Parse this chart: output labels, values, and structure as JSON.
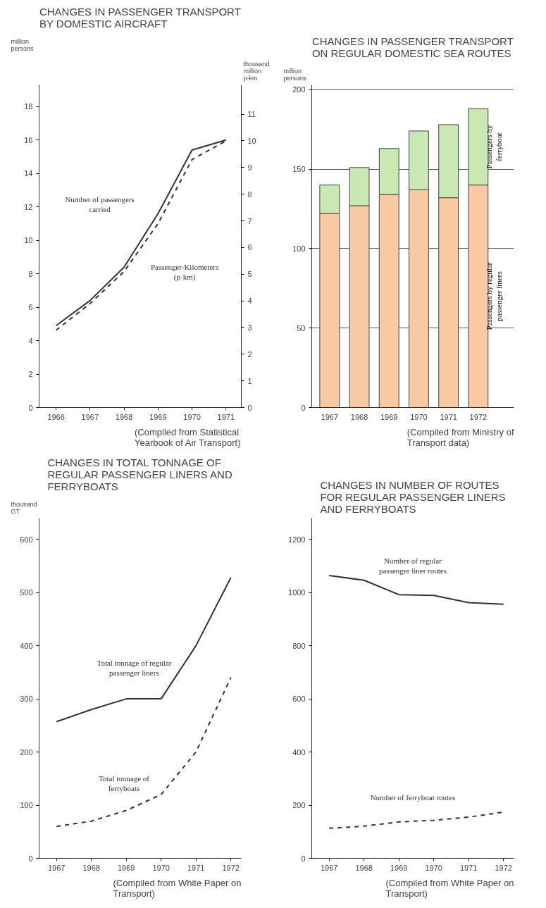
{
  "chart_data": [
    {
      "type": "line",
      "title": "CHANGES IN PASSENGER TRANSPORT BY DOMESTIC AIRCRAFT",
      "ylabel": "million persons",
      "y2label": "thousand million p-km",
      "x": [
        1966,
        1967,
        1968,
        1969,
        1970,
        1971
      ],
      "xlim": [
        1965.5,
        1971.45
      ],
      "xticks": [
        1966,
        1967,
        1968,
        1969,
        1970,
        1971
      ],
      "ylim": [
        0,
        19.3
      ],
      "yticks": [
        0,
        2,
        4,
        6,
        8,
        10,
        12,
        14,
        16,
        18
      ],
      "y2lim": [
        0,
        12.1
      ],
      "y2ticks": [
        0,
        1,
        2,
        3,
        4,
        5,
        6,
        7,
        8,
        9,
        10,
        11
      ],
      "grid": false,
      "series": [
        {
          "name": "Number of passengers carried",
          "color": "#333333",
          "line_style": "solid",
          "values": [
            4.9,
            6.4,
            8.4,
            11.6,
            15.4,
            16.0
          ]
        },
        {
          "name": "Passenger-Kilometers (p·km)",
          "color": "#333333",
          "line_style": "dashed",
          "axis": "y2",
          "values": [
            2.9,
            3.9,
            5.1,
            6.9,
            9.3,
            10.0
          ]
        }
      ],
      "annotations": [
        "(Compiled from Statistical Yearbook of Air Transport)"
      ]
    },
    {
      "type": "bar",
      "stacked": true,
      "title": "CHANGES IN PASSENGER TRANSPORT ON REGULAR DOMESTIC SEA ROUTES",
      "ylabel": "million persons",
      "categories": [
        "1967",
        "1968",
        "1969",
        "1970",
        "1971",
        "1972"
      ],
      "ylim": [
        0,
        203
      ],
      "yticks": [
        0,
        50,
        100,
        150,
        200
      ],
      "grid": "y",
      "series": [
        {
          "name": "Passengers by regular passenger liners",
          "color": "#f9c9a3",
          "values": [
            122,
            127,
            134,
            137,
            132,
            140
          ]
        },
        {
          "name": "Passengers by ferryboat",
          "color": "#c9e8b3",
          "values": [
            18,
            24,
            29,
            37,
            46,
            48
          ]
        }
      ],
      "annotations": [
        "(Compiled from Ministry of Transport data)"
      ]
    },
    {
      "type": "line",
      "title": "CHANGES IN TOTAL TONNAGE OF REGULAR PASSENGER LINERS AND FERRYBOATS",
      "ylabel": "thousand GT",
      "x": [
        1967,
        1968,
        1969,
        1970,
        1971,
        1972
      ],
      "xlim": [
        1966.5,
        1972.3
      ],
      "xticks": [
        1967,
        1968,
        1969,
        1970,
        1971,
        1972
      ],
      "ylim": [
        0,
        640
      ],
      "yticks": [
        0,
        100,
        200,
        300,
        400,
        500,
        600
      ],
      "grid": false,
      "series": [
        {
          "name": "Total tonnage of regular passenger liners",
          "color": "#333333",
          "line_style": "solid",
          "values": [
            257,
            280,
            300,
            300,
            400,
            528
          ]
        },
        {
          "name": "Total tonnage of ferryboats",
          "color": "#333333",
          "line_style": "dashed",
          "values": [
            60,
            70,
            90,
            120,
            200,
            340
          ]
        }
      ],
      "annotations": [
        "(Compiled from White Paper on Transport)"
      ]
    },
    {
      "type": "line",
      "title": "CHANGES IN NUMBER OF ROUTES FOR REGULAR PASSENGER LINERS AND FERRYBOATS",
      "x": [
        1967,
        1968,
        1969,
        1970,
        1971,
        1972
      ],
      "xlim": [
        1966.5,
        1972.3
      ],
      "xticks": [
        1967,
        1968,
        1969,
        1970,
        1971,
        1972
      ],
      "ylim": [
        0,
        1280
      ],
      "yticks": [
        0,
        200,
        400,
        600,
        800,
        1000,
        1200
      ],
      "grid": false,
      "series": [
        {
          "name": "Number of regular passenger liner routes",
          "color": "#333333",
          "line_style": "solid",
          "values": [
            1064,
            1046,
            992,
            989,
            962,
            956
          ]
        },
        {
          "name": "Number of ferryboat routes",
          "color": "#333333",
          "line_style": "dashed",
          "values": [
            113,
            121,
            137,
            143,
            155,
            174
          ]
        }
      ],
      "annotations": [
        "(Compiled from White Paper on Transport)"
      ]
    }
  ]
}
